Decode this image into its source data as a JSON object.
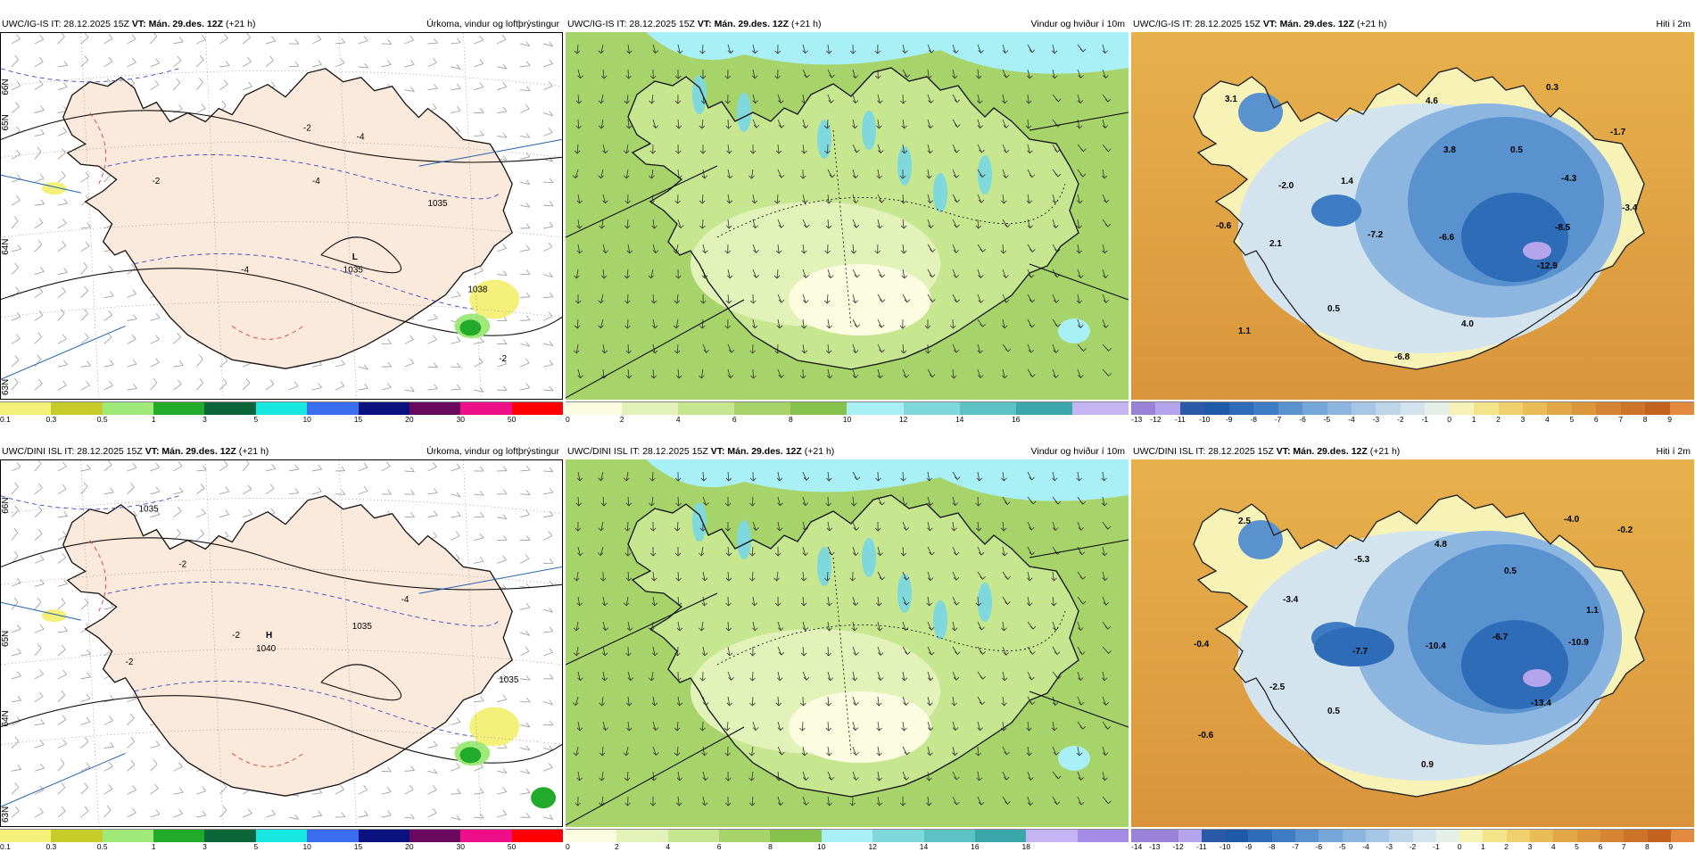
{
  "panels": [
    {
      "left": "UWC/IG-IS IT: 28.12.2025 15Z ",
      "vt": "VT: Mán. 29.des. 12Z",
      "lead": " (+21 h)",
      "title": "Úrkoma, vindur og loftþrýstingur",
      "ticks": [
        "0.1",
        "0.3",
        "0.5",
        "1",
        "3",
        "5",
        "10",
        "15",
        "20",
        "30",
        "50"
      ],
      "map_labels": [
        "1035",
        "1038",
        "1035",
        "L",
        "-2",
        "-4",
        "-2",
        "-4",
        "-2",
        "-4"
      ],
      "lat_labels": [
        "65N",
        "64N",
        "66N",
        "63N"
      ]
    },
    {
      "left": "UWC/IG-IS IT: 28.12.2025 15Z ",
      "vt": "VT: Mán. 29.des. 12Z",
      "lead": " (+21 h)",
      "title": "Vindur og hviður í 10m",
      "ticks": [
        "0",
        "2",
        "4",
        "6",
        "8",
        "10",
        "12",
        "14",
        "16"
      ]
    },
    {
      "left": "UWC/IG-IS IT: 28.12.2025 15Z ",
      "vt": "VT: Mán. 29.des. 12Z",
      "lead": " (+21 h)",
      "title": "Hiti í 2m",
      "ticks": [
        "-13",
        "-12",
        "-11",
        "-10",
        "-9",
        "-8",
        "-7",
        "-6",
        "-5",
        "-4",
        "-3",
        "-2",
        "-1",
        "0",
        "1",
        "2",
        "3",
        "4",
        "5",
        "6",
        "7",
        "8",
        "9"
      ],
      "temps": [
        "3.1",
        "4.6",
        "0.3",
        "-1.7",
        "3.8",
        "0.5",
        "-4.3",
        "-2.0",
        "1.4",
        "-3.4",
        "-0.6",
        "-7.2",
        "-6.6",
        "-8.5",
        "2.1",
        "-12.9",
        "0.5",
        "4.0",
        "1.1",
        "-6.8"
      ]
    },
    {
      "left": "UWC/DINI ISL IT: 28.12.2025 15Z ",
      "vt": "VT: Mán. 29.des. 12Z",
      "lead": " (+21 h)",
      "title": "Úrkoma, vindur og loftþrýstingur",
      "ticks": [
        "0.1",
        "0.3",
        "0.5",
        "1",
        "3",
        "5",
        "10",
        "15",
        "20",
        "30",
        "50"
      ],
      "map_labels": [
        "1035",
        "H",
        "1040",
        "1035",
        "1035",
        "-2",
        "-2",
        "-2",
        "-4"
      ],
      "lat_labels": [
        "66N",
        "65N",
        "64N",
        "63N"
      ]
    },
    {
      "left": "UWC/DINI ISL IT: 28.12.2025 15Z ",
      "vt": "VT: Mán. 29.des. 12Z",
      "lead": " (+21 h)",
      "title": "Vindur og hviður í 10m",
      "ticks": [
        "0",
        "2",
        "4",
        "6",
        "8",
        "10",
        "12",
        "14",
        "16",
        "18"
      ]
    },
    {
      "left": "UWC/DINI ISL IT: 28.12.2025 15Z ",
      "vt": "VT: Mán. 29.des. 12Z",
      "lead": " (+21 h)",
      "title": "Hiti í 2m",
      "ticks": [
        "-14",
        "-13",
        "-12",
        "-11",
        "-10",
        "-9",
        "-8",
        "-7",
        "-6",
        "-5",
        "-4",
        "-3",
        "-2",
        "-1",
        "0",
        "1",
        "2",
        "3",
        "4",
        "5",
        "6",
        "7",
        "8",
        "9"
      ],
      "temps": [
        "2.5",
        "-4.0",
        "-0.2",
        "4.8",
        "-5.3",
        "0.5",
        "-3.4",
        "1.1",
        "-0.4",
        "-7.7",
        "-10.4",
        "-6.7",
        "-10.9",
        "-2.5",
        "-13.4",
        "0.5",
        "-0.6",
        "0.9"
      ]
    }
  ],
  "colors": {
    "precip": [
      "#f5f07a",
      "#c8cc2a",
      "#9fe87a",
      "#22aa2a",
      "#0a6638",
      "#18e8e2",
      "#3a6cf0",
      "#0a1280",
      "#6a0860",
      "#ee0e88",
      "#ff0000"
    ],
    "wind1": [
      "#fcfde0",
      "#e2f2b8",
      "#c6e690",
      "#a6d46a",
      "#88c24e",
      "#a8f0f6",
      "#7fd8dc",
      "#5cc2c4",
      "#3aa8aa",
      "#c4b4f4"
    ],
    "wind2": [
      "#fcfde0",
      "#e2f2b8",
      "#c6e690",
      "#a6d46a",
      "#88c24e",
      "#a8f0f6",
      "#7fd8dc",
      "#5cc2c4",
      "#3aa8aa",
      "#c4b4f4",
      "#a48ce6"
    ],
    "temp": [
      "#9a82d8",
      "#b4a4ec",
      "#2a5aa6",
      "#1e5aa8",
      "#2e6cb8",
      "#3e7cc4",
      "#5a92d0",
      "#74a6da",
      "#8cb6e0",
      "#a6c6e6",
      "#bed6ea",
      "#d4e4ee",
      "#e6eee8",
      "#f7f3b6",
      "#f3e48a",
      "#efd06c",
      "#eabc55",
      "#e3a846",
      "#dc963c",
      "#d48432",
      "#cc7428",
      "#c46220",
      "#e38a3e"
    ]
  }
}
